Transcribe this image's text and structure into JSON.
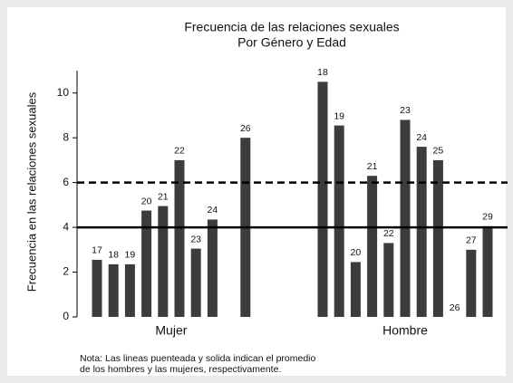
{
  "chart_data": {
    "type": "bar",
    "title": "Frecuencia de las relaciones sexuales",
    "subtitle": "Por Género y Edad",
    "y_label": "Frecuencia en las relaciones sexuales",
    "color": "#3c3c3c",
    "ylim": [
      0,
      11
    ],
    "yticks": [
      0,
      2,
      4,
      6,
      8,
      10
    ],
    "groups": [
      {
        "name": "Mujer",
        "categories": [
          "17",
          "18",
          "19",
          "20",
          "21",
          "22",
          "23",
          "24",
          null,
          "26"
        ],
        "values": [
          2.55,
          2.35,
          2.35,
          4.75,
          4.95,
          7.0,
          3.05,
          4.35,
          null,
          8.0
        ]
      },
      {
        "name": "Hombre",
        "categories": [
          "18",
          "19",
          "20",
          "21",
          "22",
          "23",
          "24",
          "25",
          "26",
          "27",
          "29"
        ],
        "values": [
          10.5,
          8.55,
          2.45,
          6.3,
          3.3,
          8.8,
          7.6,
          7.0,
          0,
          3.0,
          4.05
        ]
      }
    ],
    "reference_lines": [
      {
        "value": 6,
        "style": "dashed"
      },
      {
        "value": 4,
        "style": "solid"
      }
    ],
    "note": [
      "Nota: Las lineas puenteada y solida indican el promedio",
      "de los hombres y las mujeres, respectivamente."
    ]
  }
}
